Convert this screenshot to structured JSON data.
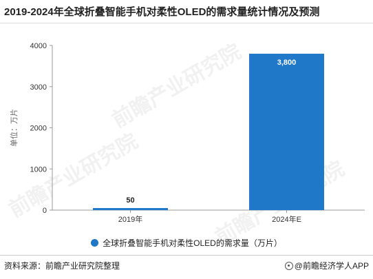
{
  "title": "2019-2024年全球折叠智能手机对柔性OLED的需求量统计情况及预测",
  "chart_data": {
    "type": "bar",
    "categories": [
      "2019年",
      "2024年E"
    ],
    "series": [
      {
        "name": "全球折叠智能手机对柔性OLED的需求量（万片）",
        "values": [
          50,
          3800
        ]
      }
    ],
    "data_labels": [
      "50",
      "3,800"
    ],
    "ylabel": "单位：万片",
    "ylim": [
      0,
      4000
    ],
    "yticks": [
      0,
      1000,
      2000,
      3000,
      4000
    ],
    "grid": false,
    "legend_position": "bottom",
    "bar_color": "#1f78c8"
  },
  "legend": {
    "label": "全球折叠智能手机对柔性OLED的需求量（万片）"
  },
  "source": "资料来源：前瞻产业研究院整理",
  "brand": "@前瞻经济学人APP",
  "watermark": "前瞻产业研究院"
}
